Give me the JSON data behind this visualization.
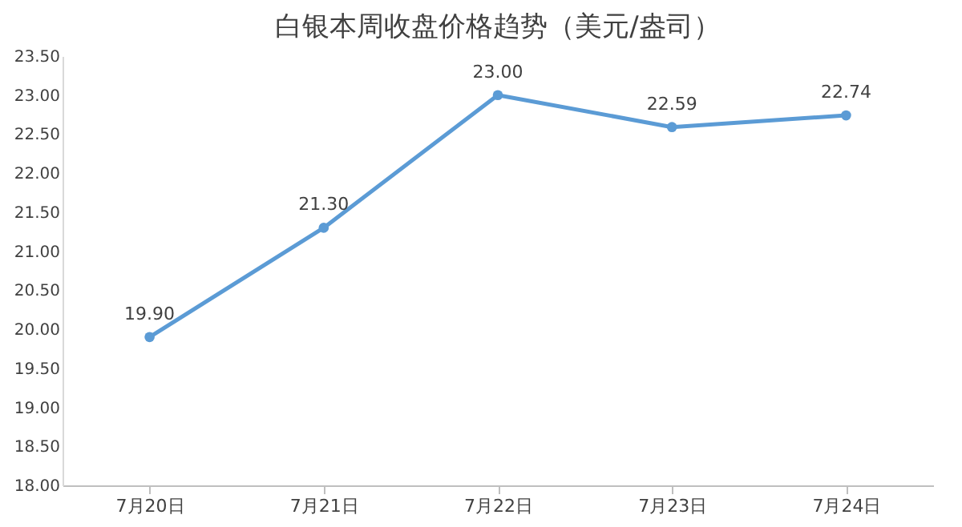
{
  "chart_data": {
    "type": "line",
    "title": "白银本周收盘价格趋势（美元/盎司）",
    "categories": [
      "7月20日",
      "7月21日",
      "7月22日",
      "7月23日",
      "7月24日"
    ],
    "series": [
      {
        "color": "#5b9bd5",
        "values": [
          19.9,
          21.3,
          23.0,
          22.59,
          22.74
        ]
      }
    ],
    "ylim": [
      18,
      23.5
    ],
    "yticks": [
      {
        "value": 18,
        "label": "18.00"
      },
      {
        "value": 18.5,
        "label": "18.50"
      },
      {
        "value": 19,
        "label": "19.00"
      },
      {
        "value": 19.5,
        "label": "19.50"
      },
      {
        "value": 20,
        "label": "20.00"
      },
      {
        "value": 20.5,
        "label": "20.50"
      },
      {
        "value": 21,
        "label": "21.00"
      },
      {
        "value": 21.5,
        "label": "21.50"
      },
      {
        "value": 22,
        "label": "22.00"
      },
      {
        "value": 22.5,
        "label": "22.50"
      },
      {
        "value": 23,
        "label": "23.00"
      },
      {
        "value": 23.5,
        "label": "23.50"
      }
    ],
    "value_labels": [
      "19.90",
      "21.30",
      "23.00",
      "22.59",
      "22.74"
    ],
    "marker": "circle",
    "line_style": "solid",
    "grid": false,
    "legend": false
  }
}
